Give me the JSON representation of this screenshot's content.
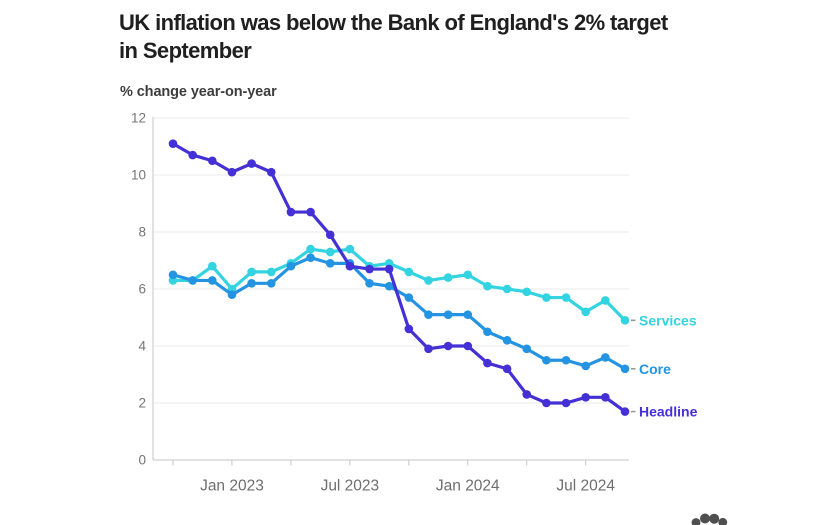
{
  "header": {
    "title": "UK inflation was below the Bank of England's 2% target in September",
    "title_lines": [
      "UK inflation was below the Bank of England's 2% target",
      "in September"
    ],
    "units_label": "% change year-on-year"
  },
  "chart_data": {
    "type": "line",
    "title": "UK inflation was below the Bank of England's 2% target in September",
    "ylabel": "% change year-on-year",
    "xlabel": "",
    "ylim": [
      0,
      12
    ],
    "yticks": [
      0,
      2,
      4,
      6,
      8,
      10,
      12
    ],
    "grid": true,
    "legend_position": "right-of-line-end",
    "x": [
      "Oct 2022",
      "Nov 2022",
      "Dec 2022",
      "Jan 2023",
      "Feb 2023",
      "Mar 2023",
      "Apr 2023",
      "May 2023",
      "Jun 2023",
      "Jul 2023",
      "Aug 2023",
      "Sep 2023",
      "Oct 2023",
      "Nov 2023",
      "Dec 2023",
      "Jan 2024",
      "Feb 2024",
      "Mar 2024",
      "Apr 2024",
      "May 2024",
      "Jun 2024",
      "Jul 2024",
      "Aug 2024",
      "Sep 2024"
    ],
    "xtick_labels": [
      "Jan 2023",
      "Jul 2023",
      "Jan 2024",
      "Jul 2024"
    ],
    "xtick_label_indices": [
      3,
      9,
      15,
      21
    ],
    "xtick_minor_indices": [
      0,
      3,
      6,
      9,
      12,
      15,
      18,
      21
    ],
    "series": [
      {
        "name": "Services",
        "color": "#33d3e1",
        "values": [
          6.3,
          6.3,
          6.8,
          6.0,
          6.6,
          6.6,
          6.9,
          7.4,
          7.3,
          7.4,
          6.8,
          6.9,
          6.6,
          6.3,
          6.4,
          6.5,
          6.1,
          6.0,
          5.9,
          5.7,
          5.7,
          5.2,
          5.6,
          4.9
        ]
      },
      {
        "name": "Core",
        "color": "#2493e2",
        "values": [
          6.5,
          6.3,
          6.3,
          5.8,
          6.2,
          6.2,
          6.8,
          7.1,
          6.9,
          6.9,
          6.2,
          6.1,
          5.7,
          5.1,
          5.1,
          5.1,
          4.5,
          4.2,
          3.9,
          3.5,
          3.5,
          3.3,
          3.6,
          3.2
        ]
      },
      {
        "name": "Headline",
        "color": "#4430d5",
        "values": [
          11.1,
          10.7,
          10.5,
          10.1,
          10.4,
          10.1,
          8.7,
          8.7,
          7.9,
          6.8,
          6.7,
          6.7,
          4.6,
          3.9,
          4.0,
          4.0,
          3.4,
          3.2,
          2.3,
          2.0,
          2.0,
          2.2,
          2.2,
          1.7
        ]
      }
    ]
  },
  "colors": {
    "grid": "#eaeaea",
    "axis": "#c6c6c6",
    "y_tick_label": "#757575",
    "x_tick_label": "#6e6e6e",
    "title": "#1f1f1f",
    "subtitle": "#3d3d3d",
    "legend_dash": "#999999",
    "logo": "#4f4f4f"
  },
  "footer": {
    "logo_icon": "dots-logo"
  }
}
